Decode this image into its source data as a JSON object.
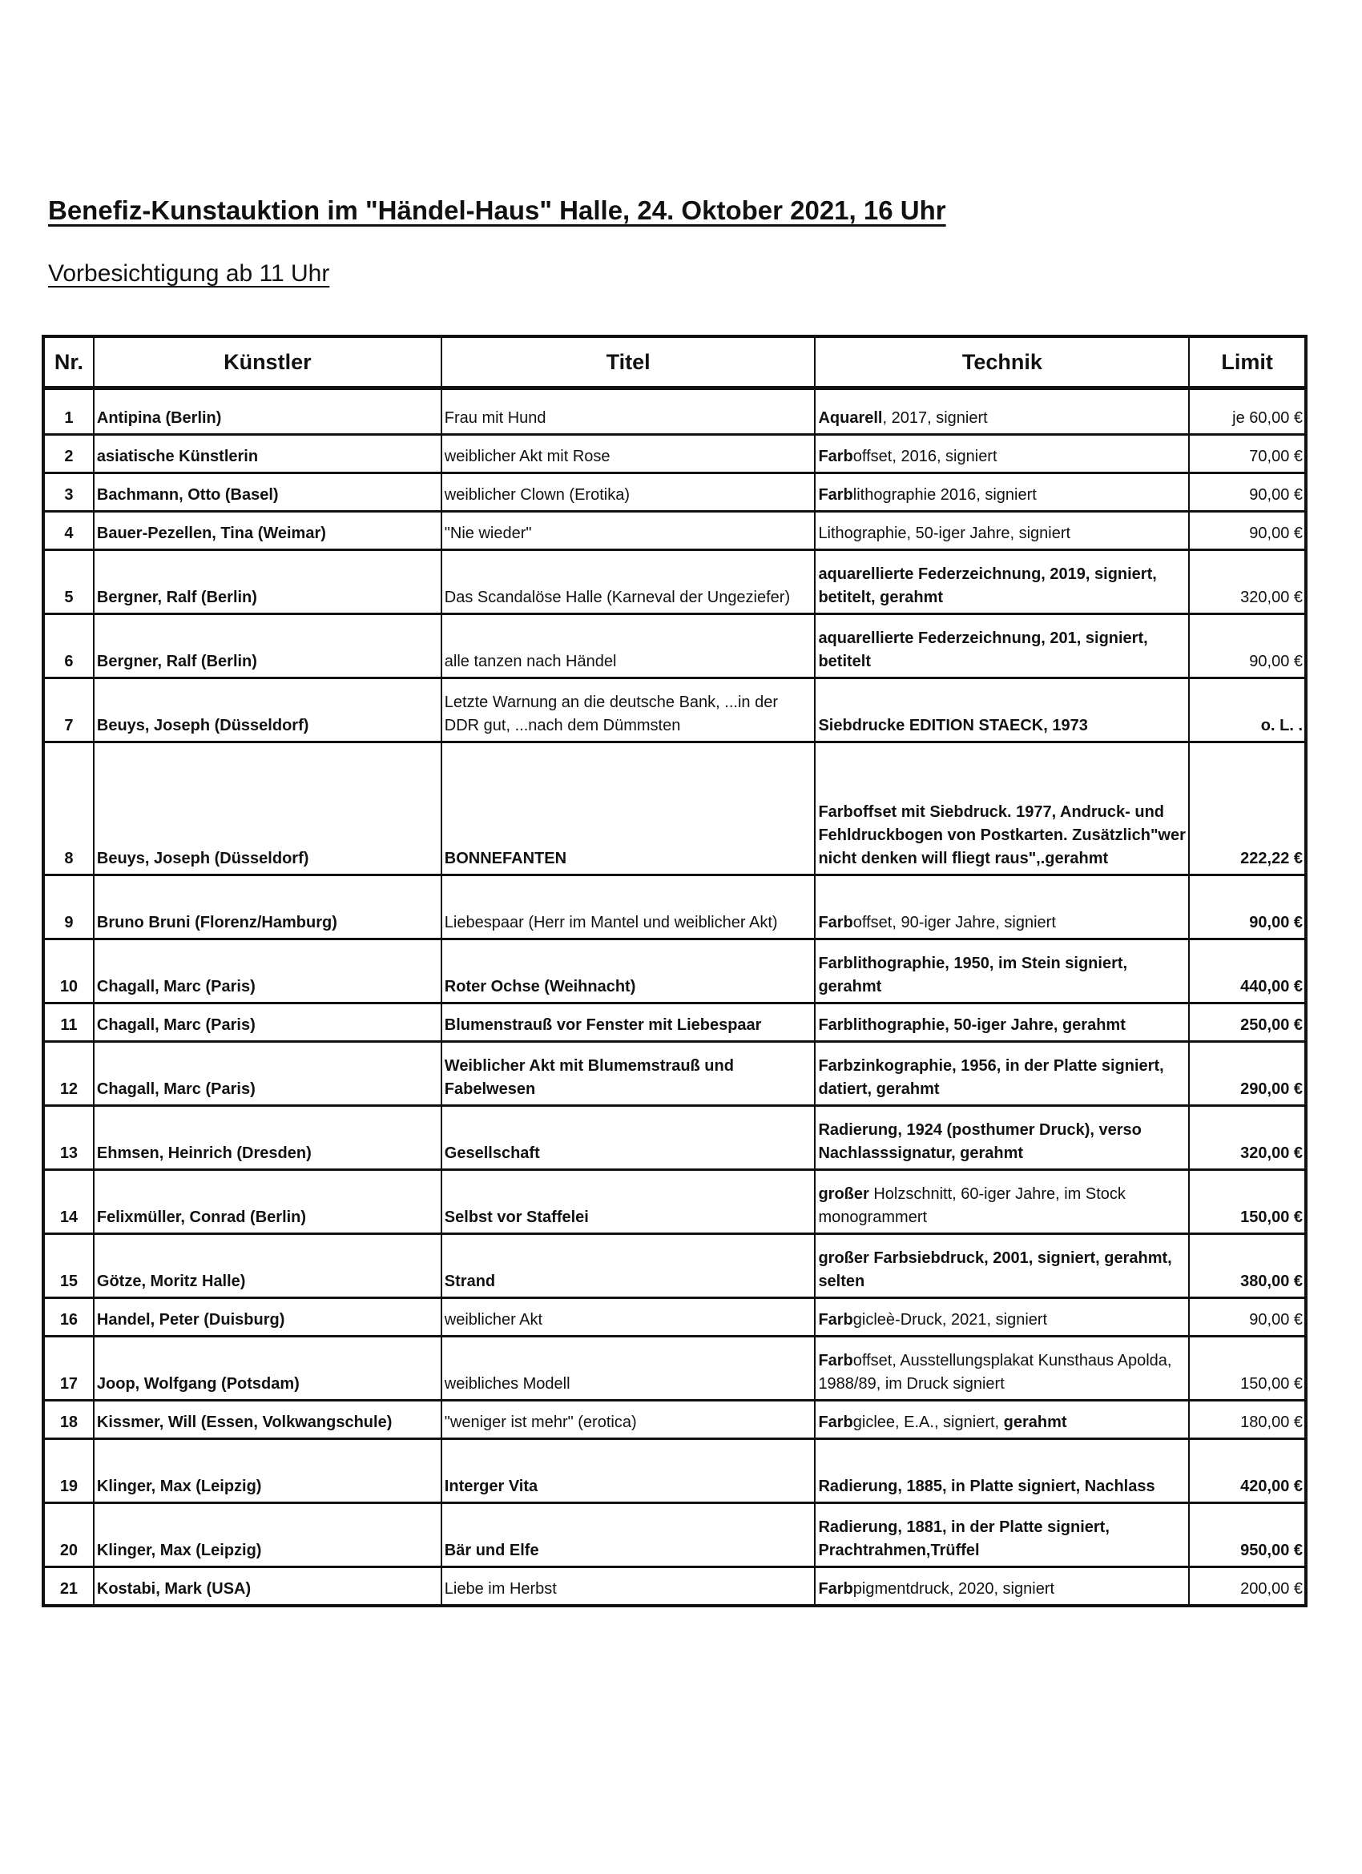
{
  "title": "Benefiz-Kunstauktion im \"Händel-Haus\" Halle, 24. Oktober 2021, 16 Uhr",
  "subtitle": "Vorbesichtigung ab 11 Uhr",
  "headers": {
    "nr": "Nr.",
    "kuenstler": "Künstler",
    "titel": "Titel",
    "technik": "Technik",
    "limit": "Limit"
  },
  "rows": [
    {
      "nr": "1",
      "kuenstler": "Antipina (Berlin)",
      "titel": "Frau mit Hund",
      "titel_bold": false,
      "technik": [
        [
          "Aquarell",
          true
        ],
        [
          ", 2017, signiert",
          false
        ]
      ],
      "limit": "je 60,00 €",
      "limit_bold": false,
      "lines": 1
    },
    {
      "nr": "2",
      "kuenstler": "asiatische Künstlerin",
      "titel": "weiblicher Akt mit Rose",
      "titel_bold": false,
      "technik": [
        [
          "Farb",
          true
        ],
        [
          "offset, 2016, signiert",
          false
        ]
      ],
      "limit": "70,00 €",
      "limit_bold": false,
      "lines": 1
    },
    {
      "nr": "3",
      "kuenstler": "Bachmann, Otto (Basel)",
      "titel": "weiblicher Clown (Erotika)",
      "titel_bold": false,
      "technik": [
        [
          "Farb",
          true
        ],
        [
          "lithographie 2016, signiert",
          false
        ]
      ],
      "limit": "90,00 €",
      "limit_bold": false,
      "lines": 1
    },
    {
      "nr": "4",
      "kuenstler": "Bauer-Pezellen, Tina (Weimar)",
      "titel": "\"Nie wieder\"",
      "titel_bold": false,
      "technik": [
        [
          "Lithographie, 50-iger Jahre, signiert",
          false
        ]
      ],
      "limit": "90,00 €",
      "limit_bold": false,
      "lines": 1
    },
    {
      "nr": "5",
      "kuenstler": "Bergner, Ralf (Berlin)",
      "titel": "Das Scandalöse Halle (Karneval der Ungeziefer)",
      "titel_bold": false,
      "technik": [
        [
          "aquarellierte Federzeichnung, 2019, signiert, betitelt, gerahmt",
          true
        ]
      ],
      "limit": "320,00 €",
      "limit_bold": false,
      "lines": 2
    },
    {
      "nr": "6",
      "kuenstler": "Bergner, Ralf (Berlin)",
      "titel": "alle tanzen nach Händel",
      "titel_bold": false,
      "technik": [
        [
          "aquarellierte Federzeichnung, 201, signiert, betitelt",
          true
        ]
      ],
      "limit": "90,00 €",
      "limit_bold": false,
      "lines": 2
    },
    {
      "nr": "7",
      "kuenstler": "Beuys, Joseph (Düsseldorf)",
      "titel": "Letzte Warnung an die deutsche Bank, ...in der DDR gut, ...nach dem Dümmsten",
      "titel_bold": false,
      "technik": [
        [
          "Siebdrucke EDITION STAECK, 1973",
          true
        ]
      ],
      "limit": "o. L. .",
      "limit_bold": true,
      "lines": 2
    },
    {
      "nr": "8",
      "kuenstler": "Beuys, Joseph (Düsseldorf)",
      "titel": "BONNEFANTEN",
      "titel_bold": true,
      "technik": [
        [
          "Farboffset mit Siebdruck. 1977, Andruck- und Fehldruckbogen von Postkarten. Zusätzlich\"wer nicht denken will fliegt raus\",.gerahmt",
          true
        ]
      ],
      "limit": "222,22 €",
      "limit_bold": true,
      "lines": 4
    },
    {
      "nr": "9",
      "kuenstler": "Bruno Bruni (Florenz/Hamburg)",
      "titel": "Liebespaar (Herr im Mantel und weiblicher Akt)",
      "titel_bold": false,
      "technik": [
        [
          "Farb",
          true
        ],
        [
          "offset, 90-iger Jahre, signiert",
          false
        ]
      ],
      "limit": "90,00 €",
      "limit_bold": true,
      "lines": 2
    },
    {
      "nr": "10",
      "kuenstler": "Chagall, Marc (Paris)",
      "titel": "Roter Ochse (Weihnacht)",
      "titel_bold": true,
      "technik": [
        [
          "Farblithographie, 1950, im Stein signiert, gerahmt",
          true
        ]
      ],
      "limit": "440,00 €",
      "limit_bold": true,
      "lines": 2
    },
    {
      "nr": "11",
      "kuenstler": "Chagall, Marc (Paris)",
      "titel": "Blumenstrauß vor Fenster mit Liebespaar",
      "titel_bold": true,
      "technik": [
        [
          "Farblithographie, 50-iger Jahre, gerahmt",
          true
        ]
      ],
      "limit": "250,00 €",
      "limit_bold": true,
      "lines": 1
    },
    {
      "nr": "12",
      "kuenstler": "Chagall, Marc (Paris)",
      "titel": "Weiblicher Akt mit Blumemstrauß und Fabelwesen",
      "titel_bold": true,
      "technik": [
        [
          "Farbzinkographie, 1956, in der Platte signiert, datiert, gerahmt",
          true
        ]
      ],
      "limit": "290,00 €",
      "limit_bold": true,
      "lines": 2
    },
    {
      "nr": "13",
      "kuenstler": "Ehmsen, Heinrich (Dresden)",
      "titel": "Gesellschaft",
      "titel_bold": true,
      "technik": [
        [
          "Radierung, 1924 (posthumer Druck), verso Nachlasssignatur, gerahmt",
          true
        ]
      ],
      "limit": "320,00 €",
      "limit_bold": true,
      "lines": 2
    },
    {
      "nr": "14",
      "kuenstler": "Felixmüller, Conrad (Berlin)",
      "titel": "Selbst vor Staffelei",
      "titel_bold": true,
      "technik": [
        [
          "großer",
          true
        ],
        [
          " Holzschnitt, 60-iger Jahre, im Stock monogrammert",
          false
        ]
      ],
      "limit": "150,00 €",
      "limit_bold": true,
      "lines": 2
    },
    {
      "nr": "15",
      "kuenstler": "Götze, Moritz Halle)",
      "titel": "Strand",
      "titel_bold": true,
      "technik": [
        [
          "großer Farbsiebdruck, 2001, signiert, gerahmt, selten",
          true
        ]
      ],
      "limit": "380,00 €",
      "limit_bold": true,
      "lines": 2
    },
    {
      "nr": "16",
      "kuenstler": "Handel, Peter (Duisburg)",
      "titel": "weiblicher Akt",
      "titel_bold": false,
      "technik": [
        [
          "Farb",
          true
        ],
        [
          "gicleè-Druck, 2021, signiert",
          false
        ]
      ],
      "limit": "90,00 €",
      "limit_bold": false,
      "lines": 1
    },
    {
      "nr": "17",
      "kuenstler": "Joop, Wolfgang (Potsdam)",
      "titel": "weibliches Modell",
      "titel_bold": false,
      "technik": [
        [
          "Farb",
          true
        ],
        [
          "offset,  Ausstellungsplakat Kunsthaus Apolda, 1988/89, im Druck signiert",
          false
        ]
      ],
      "limit": "150,00 €",
      "limit_bold": false,
      "lines": 2
    },
    {
      "nr": "18",
      "kuenstler": "Kissmer, Will (Essen, Volkwangschule)",
      "titel": "\"weniger ist mehr\" (erotica)",
      "titel_bold": false,
      "technik": [
        [
          "Farb",
          true
        ],
        [
          "giclee, E.A., signiert, ",
          false
        ],
        [
          "gerahmt",
          true
        ]
      ],
      "limit": "180,00 €",
      "limit_bold": false,
      "lines": 1
    },
    {
      "nr": "19",
      "kuenstler": "Klinger, Max (Leipzig)",
      "titel": "Interger Vita",
      "titel_bold": true,
      "technik": [
        [
          "Radierung, 1885, in Platte signiert, Nachlass",
          true
        ]
      ],
      "limit": "420,00 €",
      "limit_bold": true,
      "lines": 2
    },
    {
      "nr": "20",
      "kuenstler": "Klinger, Max (Leipzig)",
      "titel": "Bär und Elfe",
      "titel_bold": true,
      "technik": [
        [
          "Radierung, 1881, in der Platte signiert, Prachtrahmen,Trüffel",
          true
        ]
      ],
      "limit": "950,00 €",
      "limit_bold": true,
      "lines": 2
    },
    {
      "nr": "21",
      "kuenstler": "Kostabi, Mark (USA)",
      "titel": "Liebe im Herbst",
      "titel_bold": false,
      "technik": [
        [
          "Farb",
          true
        ],
        [
          "pigmentdruck, 2020, signiert",
          false
        ]
      ],
      "limit": "200,00 €",
      "limit_bold": false,
      "lines": 1
    }
  ]
}
